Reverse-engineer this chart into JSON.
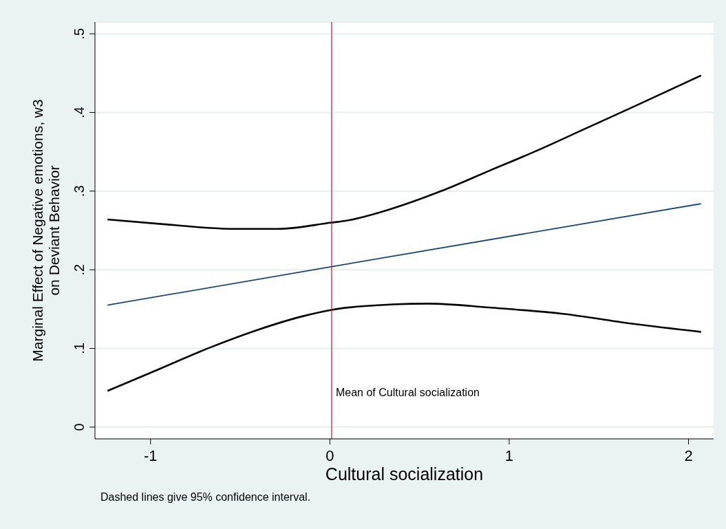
{
  "chart_data": {
    "type": "line",
    "xlabel": "Cultural socialization",
    "ylabel": "Marginal Effect of Negative emotions, w3\non Deviant Behavior",
    "xlim": [
      -1.31,
      2.14
    ],
    "ylim": [
      -0.015,
      0.515
    ],
    "xticks": [
      -1,
      0,
      1,
      2
    ],
    "yticks": [
      {
        "value": 0,
        "label": "0"
      },
      {
        "value": 0.1,
        "label": ".1"
      },
      {
        "value": 0.2,
        "label": ".2"
      },
      {
        "value": 0.3,
        "label": ".3"
      },
      {
        "value": 0.4,
        "label": ".4"
      },
      {
        "value": 0.5,
        "label": ".5"
      }
    ],
    "grid": "y",
    "marker": "none",
    "line_style": "solid",
    "legend": false,
    "series": [
      {
        "color": "#000000",
        "x": [
          -1.24,
          -0.93,
          -0.54,
          -0.29,
          0.01,
          0.08,
          0.35,
          0.62,
          0.89,
          1.16,
          1.43,
          1.7,
          2.07
        ],
        "values": [
          0.264,
          0.258,
          0.252,
          0.252,
          0.26,
          0.262,
          0.278,
          0.3,
          0.326,
          0.352,
          0.38,
          0.408,
          0.447
        ]
      },
      {
        "color": "#1a476f",
        "x": [
          -1.24,
          0.01,
          2.07
        ],
        "values": [
          0.155,
          0.204,
          0.284
        ]
      },
      {
        "color": "#000000",
        "x": [
          -1.24,
          -0.99,
          -0.67,
          -0.41,
          -0.15,
          0.01,
          0.35,
          0.55,
          0.89,
          1.3,
          1.7,
          2.07
        ],
        "values": [
          0.046,
          0.07,
          0.101,
          0.123,
          0.141,
          0.149,
          0.156,
          0.157,
          0.152,
          0.144,
          0.131,
          0.121
        ]
      }
    ],
    "ref_lines": [
      {
        "axis": "x",
        "value": 0.01,
        "label": "Mean of Cultural socialization",
        "color": "#c8102e"
      }
    ],
    "annotations": [
      "Dashed lines give 95% confidence interval."
    ]
  }
}
